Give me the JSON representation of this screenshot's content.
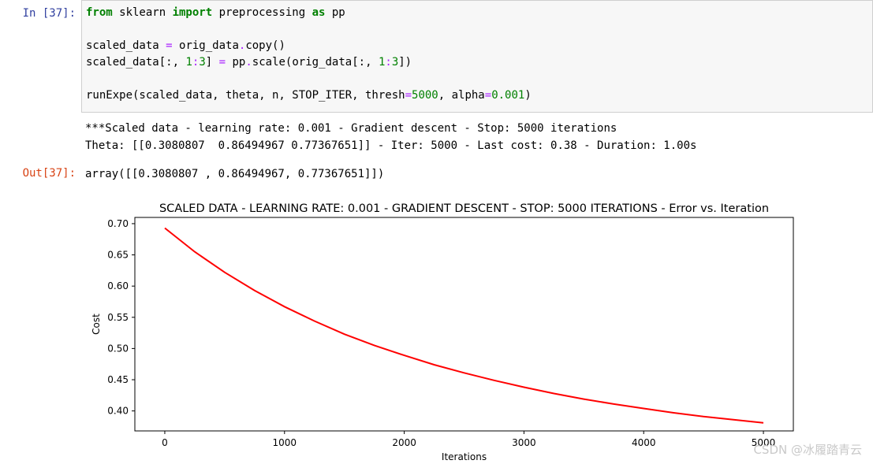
{
  "cell_in": {
    "prompt": "In  [37]:",
    "lines": [
      [
        {
          "t": "from",
          "c": "kw"
        },
        {
          "t": " sklearn "
        },
        {
          "t": "import",
          "c": "kw"
        },
        {
          "t": " preprocessing "
        },
        {
          "t": "as",
          "c": "kw"
        },
        {
          "t": " pp"
        }
      ],
      [],
      [
        {
          "t": "scaled_data "
        },
        {
          "t": "=",
          "c": "op"
        },
        {
          "t": " orig_data"
        },
        {
          "t": ".",
          "c": "op"
        },
        {
          "t": "copy()"
        }
      ],
      [
        {
          "t": "scaled_data[:, "
        },
        {
          "t": "1",
          "c": "num"
        },
        {
          "t": ":",
          "c": "op"
        },
        {
          "t": "3",
          "c": "num"
        },
        {
          "t": "] "
        },
        {
          "t": "=",
          "c": "op"
        },
        {
          "t": " pp"
        },
        {
          "t": ".",
          "c": "op"
        },
        {
          "t": "scale(orig_data[:, "
        },
        {
          "t": "1",
          "c": "num"
        },
        {
          "t": ":",
          "c": "op"
        },
        {
          "t": "3",
          "c": "num"
        },
        {
          "t": "])"
        }
      ],
      [],
      [
        {
          "t": "runExpe(scaled_data, theta, n, STOP_ITER, thresh"
        },
        {
          "t": "=",
          "c": "op"
        },
        {
          "t": "5000",
          "c": "num"
        },
        {
          "t": ", alpha"
        },
        {
          "t": "=",
          "c": "op"
        },
        {
          "t": "0.001",
          "c": "num"
        },
        {
          "t": ")"
        }
      ]
    ]
  },
  "stdout": {
    "line1": "***Scaled data - learning rate: 0.001 - Gradient descent - Stop: 5000 iterations",
    "line2": "Theta: [[0.3080807  0.86494967 0.77367651]] - Iter: 5000 - Last cost: 0.38 - Duration: 1.00s"
  },
  "cell_out": {
    "prompt": "Out[37]:",
    "value": "array([[0.3080807 , 0.86494967, 0.77367651]])"
  },
  "watermark": "CSDN @冰履踏青云",
  "chart_data": {
    "type": "line",
    "title": "SCALED DATA - LEARNING RATE: 0.001 - GRADIENT DESCENT - STOP: 5000 ITERATIONS - Error vs. Iteration",
    "xlabel": "Iterations",
    "ylabel": "Cost",
    "xlim": [
      -250,
      5250
    ],
    "ylim": [
      0.368,
      0.71
    ],
    "xticks": [
      0,
      1000,
      2000,
      3000,
      4000,
      5000
    ],
    "xtick_labels": [
      "0",
      "1000",
      "2000",
      "3000",
      "4000",
      "5000"
    ],
    "yticks": [
      0.4,
      0.45,
      0.5,
      0.55,
      0.6,
      0.65,
      0.7
    ],
    "ytick_labels": [
      "0.40",
      "0.45",
      "0.50",
      "0.55",
      "0.60",
      "0.65",
      "0.70"
    ],
    "grid": false,
    "color": "#ff0000",
    "series": [
      {
        "x": [
          0,
          250,
          500,
          750,
          1000,
          1250,
          1500,
          1750,
          2000,
          2250,
          2500,
          2750,
          3000,
          3250,
          3500,
          3750,
          4000,
          4250,
          4500,
          4750,
          5000
        ],
        "y": [
          0.693,
          0.655,
          0.622,
          0.593,
          0.567,
          0.544,
          0.523,
          0.505,
          0.489,
          0.474,
          0.461,
          0.449,
          0.438,
          0.428,
          0.419,
          0.411,
          0.404,
          0.397,
          0.391,
          0.386,
          0.381
        ]
      }
    ]
  }
}
